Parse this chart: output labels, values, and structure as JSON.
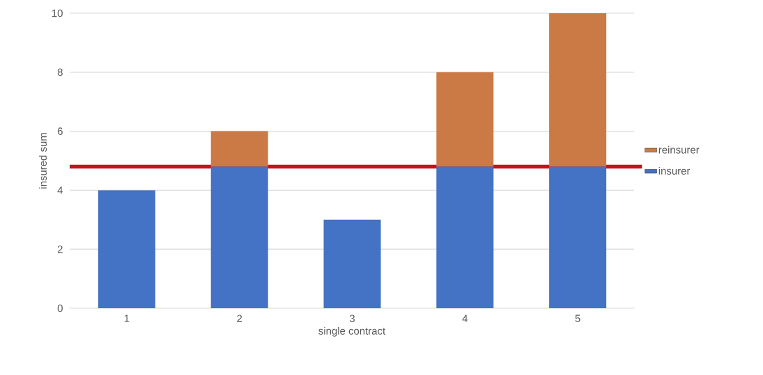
{
  "chart_data": {
    "type": "bar",
    "stacked": true,
    "xlabel": "single contract",
    "ylabel": "insured sum",
    "categories": [
      "1",
      "2",
      "3",
      "4",
      "5"
    ],
    "series": [
      {
        "name": "insurer",
        "color": "#4472c4",
        "values": [
          4,
          4.8,
          3,
          4.8,
          4.8
        ]
      },
      {
        "name": "reinsurer",
        "color": "#cc7a45",
        "values": [
          null,
          1.2,
          null,
          3.2,
          5.2
        ]
      }
    ],
    "ylim": [
      0,
      10
    ],
    "yticks": [
      0,
      2,
      4,
      6,
      8,
      10
    ],
    "grid": "y",
    "legend": "right",
    "ref_lines": [
      {
        "axis": "y",
        "value": 4.8,
        "color": "#c0161b"
      }
    ]
  }
}
